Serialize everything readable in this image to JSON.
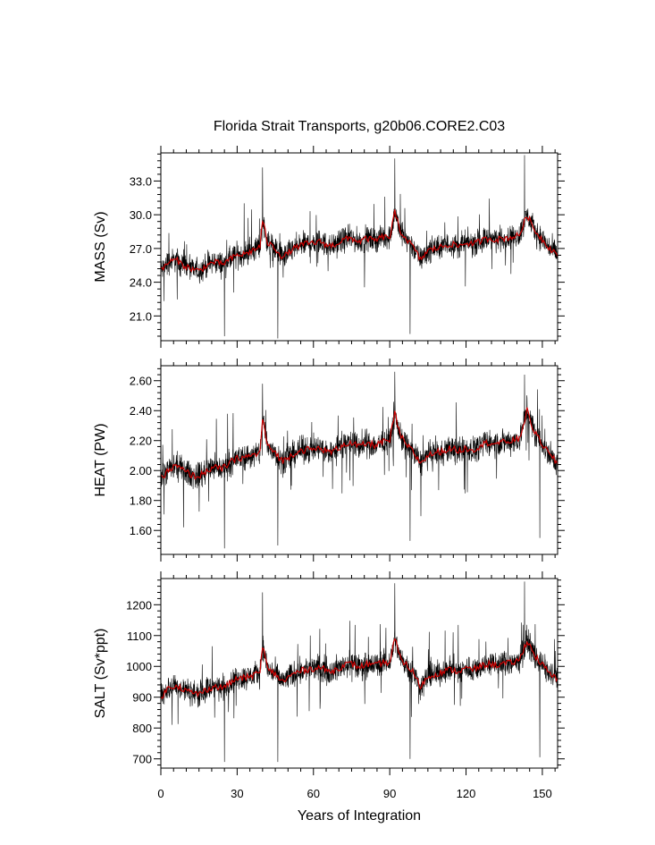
{
  "title": "Florida Strait Transports, g20b06.CORE2.C03",
  "xlabel": "Years of Integration",
  "colors": {
    "raw": "#000000",
    "smooth": "#cc0000",
    "frame": "#000000"
  },
  "chart_data": [
    {
      "type": "line",
      "ylabel": "MASS (Sv)",
      "xlim": [
        0,
        156
      ],
      "ylim": [
        18.8,
        35.5
      ],
      "ytick_values": [
        21.0,
        24.0,
        27.0,
        30.0,
        33.0
      ],
      "ytick_labels": [
        "21.0",
        "24.0",
        "27.0",
        "30.0",
        "33.0"
      ],
      "xtick_values": [
        0,
        30,
        60,
        90,
        120,
        150
      ],
      "xtick_labels": [
        "0",
        "30",
        "60",
        "90",
        "120",
        "150"
      ],
      "series": [
        {
          "x": [
            0,
            3,
            6,
            9,
            12,
            15,
            18,
            21,
            24,
            27,
            30,
            33,
            36,
            39,
            40,
            42,
            45,
            48,
            51,
            54,
            57,
            60,
            63,
            66,
            69,
            72,
            75,
            78,
            81,
            84,
            87,
            90,
            92,
            94,
            96,
            99,
            102,
            105,
            108,
            111,
            114,
            117,
            120,
            123,
            126,
            129,
            132,
            135,
            138,
            141,
            144,
            147,
            150,
            153,
            156
          ],
          "y": [
            25.0,
            25.8,
            26.0,
            25.5,
            25.2,
            25.0,
            25.5,
            25.8,
            25.6,
            26.0,
            26.4,
            26.5,
            26.8,
            27.2,
            29.5,
            27.5,
            27.0,
            26.2,
            26.8,
            27.2,
            27.4,
            27.5,
            27.6,
            27.2,
            27.4,
            27.8,
            27.9,
            27.6,
            27.9,
            27.7,
            28.0,
            28.0,
            30.2,
            28.6,
            28.0,
            27.2,
            26.0,
            26.8,
            27.0,
            27.2,
            27.4,
            27.2,
            27.5,
            27.4,
            27.7,
            27.9,
            27.8,
            27.9,
            28.0,
            28.2,
            30.0,
            28.6,
            27.8,
            27.0,
            26.5
          ]
        }
      ],
      "noise": {
        "amplitude": 1.6,
        "spikes": [
          [
            40,
            34.2
          ],
          [
            46,
            19.0
          ],
          [
            92,
            35.0
          ],
          [
            143,
            35.3
          ],
          [
            98,
            19.4
          ],
          [
            25,
            19.2
          ]
        ]
      }
    },
    {
      "type": "line",
      "ylabel": "HEAT (PW)",
      "xlim": [
        0,
        156
      ],
      "ylim": [
        1.44,
        2.7
      ],
      "ytick_values": [
        1.6,
        1.8,
        2.0,
        2.2,
        2.4,
        2.6
      ],
      "ytick_labels": [
        "1.60",
        "1.80",
        "2.00",
        "2.20",
        "2.40",
        "2.60"
      ],
      "xtick_values": [
        0,
        30,
        60,
        90,
        120,
        150
      ],
      "xtick_labels": [
        "0",
        "30",
        "60",
        "90",
        "120",
        "150"
      ],
      "series": [
        {
          "x": [
            0,
            3,
            6,
            9,
            12,
            15,
            18,
            21,
            24,
            27,
            30,
            33,
            36,
            39,
            40,
            42,
            45,
            48,
            51,
            54,
            57,
            60,
            63,
            66,
            69,
            72,
            75,
            78,
            81,
            84,
            87,
            90,
            92,
            94,
            96,
            99,
            102,
            105,
            108,
            111,
            114,
            117,
            120,
            123,
            126,
            129,
            132,
            135,
            138,
            141,
            144,
            147,
            150,
            153,
            156
          ],
          "y": [
            1.95,
            2.0,
            2.03,
            2.0,
            1.97,
            1.96,
            2.0,
            2.02,
            2.01,
            2.05,
            2.08,
            2.09,
            2.1,
            2.12,
            2.35,
            2.16,
            2.12,
            2.06,
            2.1,
            2.13,
            2.14,
            2.14,
            2.15,
            2.12,
            2.14,
            2.18,
            2.18,
            2.16,
            2.18,
            2.17,
            2.19,
            2.2,
            2.38,
            2.24,
            2.18,
            2.13,
            2.05,
            2.1,
            2.12,
            2.13,
            2.15,
            2.13,
            2.15,
            2.14,
            2.17,
            2.19,
            2.18,
            2.19,
            2.2,
            2.21,
            2.4,
            2.25,
            2.18,
            2.1,
            2.05
          ]
        }
      ],
      "noise": {
        "amplitude": 0.13,
        "spikes": [
          [
            40,
            2.58
          ],
          [
            46,
            1.5
          ],
          [
            92,
            2.66
          ],
          [
            143,
            2.64
          ],
          [
            98,
            1.53
          ],
          [
            25,
            1.48
          ],
          [
            149,
            1.55
          ]
        ]
      }
    },
    {
      "type": "line",
      "ylabel": "SALT (Sv*ppt)",
      "xlim": [
        0,
        156
      ],
      "ylim": [
        670,
        1285
      ],
      "ytick_values": [
        700,
        800,
        900,
        1000,
        1100,
        1200
      ],
      "ytick_labels": [
        "700",
        "800",
        "900",
        "1000",
        "1100",
        "1200"
      ],
      "xtick_values": [
        0,
        30,
        60,
        90,
        120,
        150
      ],
      "xtick_labels": [
        "0",
        "30",
        "60",
        "90",
        "120",
        "150"
      ],
      "series": [
        {
          "x": [
            0,
            3,
            6,
            9,
            12,
            15,
            18,
            21,
            24,
            27,
            30,
            33,
            36,
            39,
            40,
            42,
            45,
            48,
            51,
            54,
            57,
            60,
            63,
            66,
            69,
            72,
            75,
            78,
            81,
            84,
            87,
            90,
            92,
            94,
            96,
            99,
            102,
            105,
            108,
            111,
            114,
            117,
            120,
            123,
            126,
            129,
            132,
            135,
            138,
            141,
            144,
            147,
            150,
            153,
            156
          ],
          "y": [
            900,
            930,
            940,
            925,
            915,
            910,
            925,
            935,
            930,
            945,
            960,
            963,
            970,
            980,
            1070,
            990,
            975,
            950,
            970,
            983,
            990,
            993,
            996,
            983,
            990,
            1005,
            1008,
            997,
            1008,
            1001,
            1012,
            1012,
            1090,
            1030,
            1010,
            983,
            935,
            965,
            975,
            983,
            990,
            983,
            993,
            990,
            1001,
            1008,
            1005,
            1008,
            1012,
            1020,
            1085,
            1035,
            1005,
            975,
            955
          ]
        }
      ],
      "noise": {
        "amplitude": 60,
        "spikes": [
          [
            40,
            1240
          ],
          [
            46,
            690
          ],
          [
            92,
            1270
          ],
          [
            143,
            1275
          ],
          [
            98,
            700
          ],
          [
            25,
            690
          ],
          [
            149,
            705
          ]
        ]
      }
    }
  ]
}
